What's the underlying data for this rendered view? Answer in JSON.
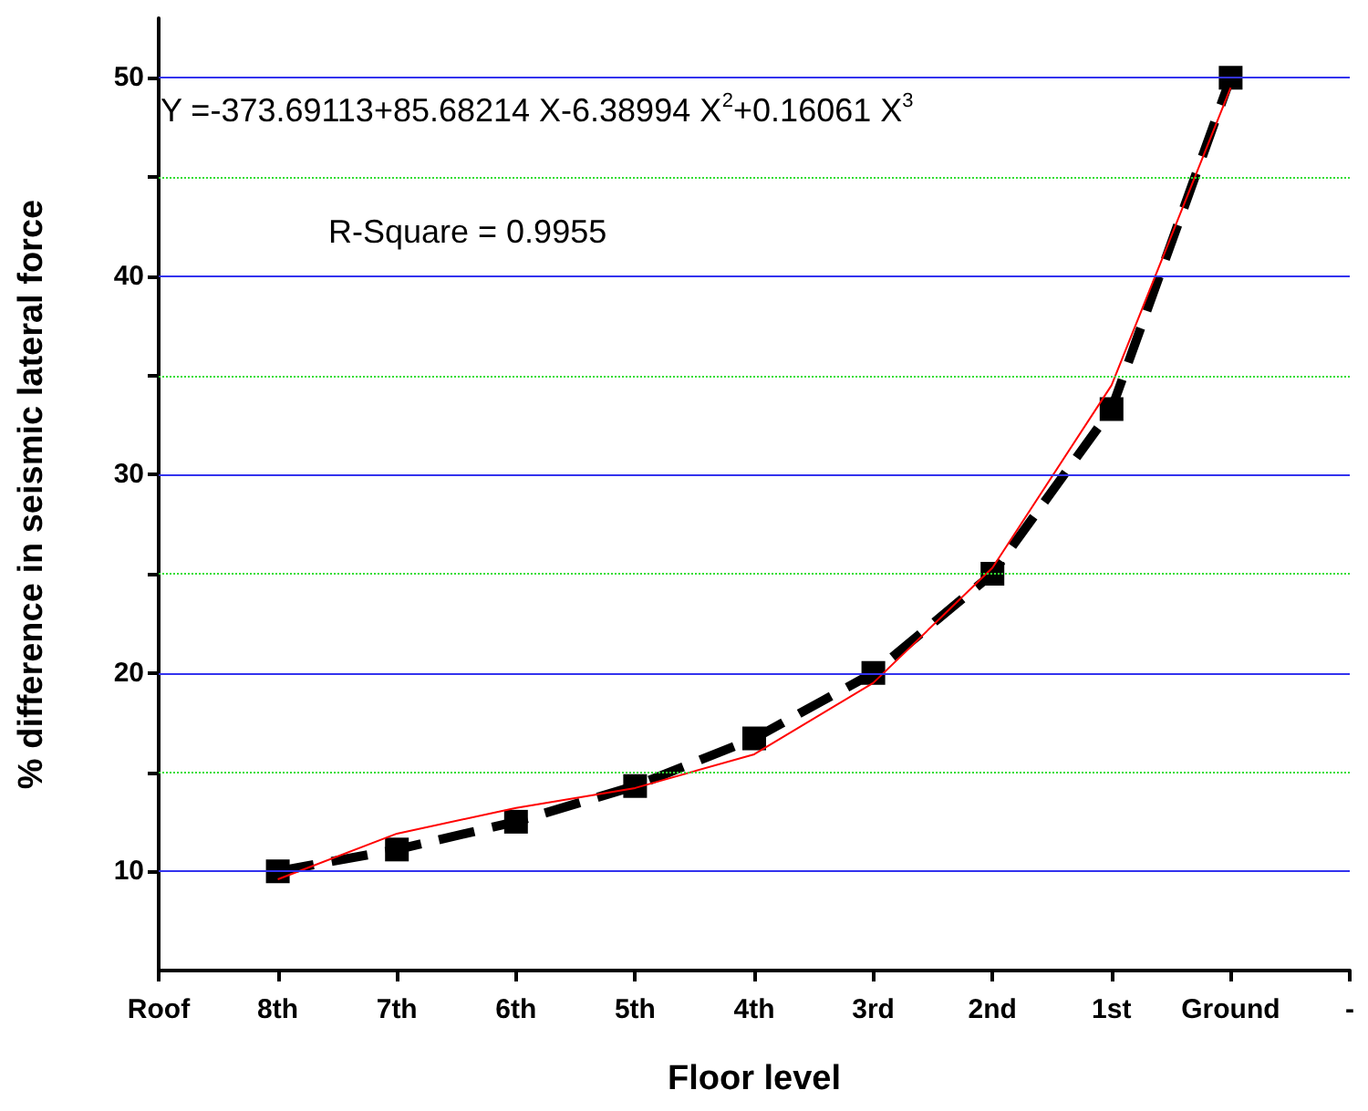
{
  "chart_data": {
    "type": "line",
    "xlabel": "Floor level",
    "ylabel": "% difference in seismic lateral force",
    "categories": [
      "Roof",
      "8th",
      "7th",
      "6th",
      "5th",
      "4th",
      "3rd",
      "2nd",
      "1st",
      "Ground",
      "-"
    ],
    "ylim": [
      5,
      53
    ],
    "yticks": [
      10,
      {
        "value": 15,
        "label": null
      },
      20,
      {
        "value": 25,
        "label": null
      },
      30,
      {
        "value": 35,
        "label": null
      },
      40,
      {
        "value": 45,
        "label": null
      },
      50
    ],
    "grid": "y",
    "annotations": [
      "Y =-373.69113+85.68214 X-6.38994 X$^{2}$+0.16061 X$^{3}$",
      "R-Square = 0.9955"
    ],
    "series": [
      {
        "type": "line",
        "color": "#000000",
        "marker": "square",
        "line_style": "dashed",
        "values": [
          null,
          10,
          11.1,
          12.5,
          14.3,
          16.7,
          20,
          25,
          33.3,
          50,
          null
        ]
      },
      {
        "type": "line",
        "color": "#ff0000",
        "marker": "none",
        "line_style": "solid",
        "values": [
          null,
          9.6,
          11.9,
          13.2,
          14.2,
          15.9,
          19.5,
          25.3,
          34.5,
          49.5,
          null
        ]
      }
    ]
  }
}
